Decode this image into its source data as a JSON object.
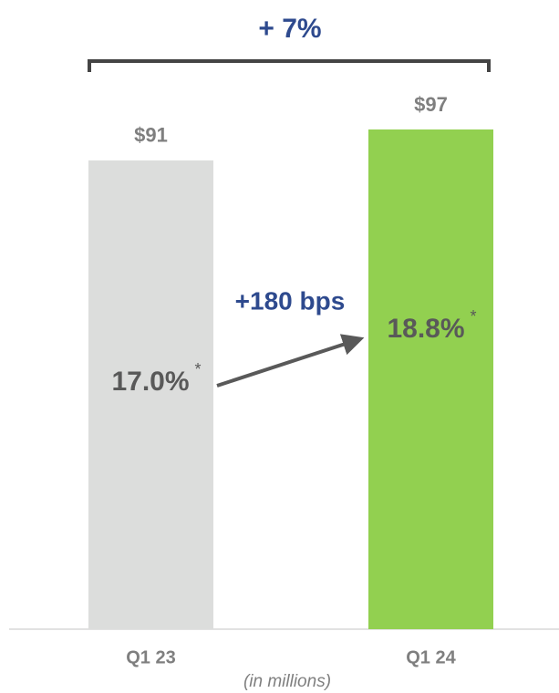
{
  "chart_data": {
    "type": "bar",
    "title": "+ 7%",
    "categories": [
      "Q1 23",
      "Q1 24"
    ],
    "values": [
      91,
      97
    ],
    "value_labels": [
      "$91",
      "$97"
    ],
    "colors": [
      "#dcdddc",
      "#92d050"
    ],
    "margin_labels": [
      "17.0%",
      "18.8%"
    ],
    "footnote_marker": "*",
    "change_annotation": "+180 bps",
    "unit_note": "(in millions)"
  }
}
